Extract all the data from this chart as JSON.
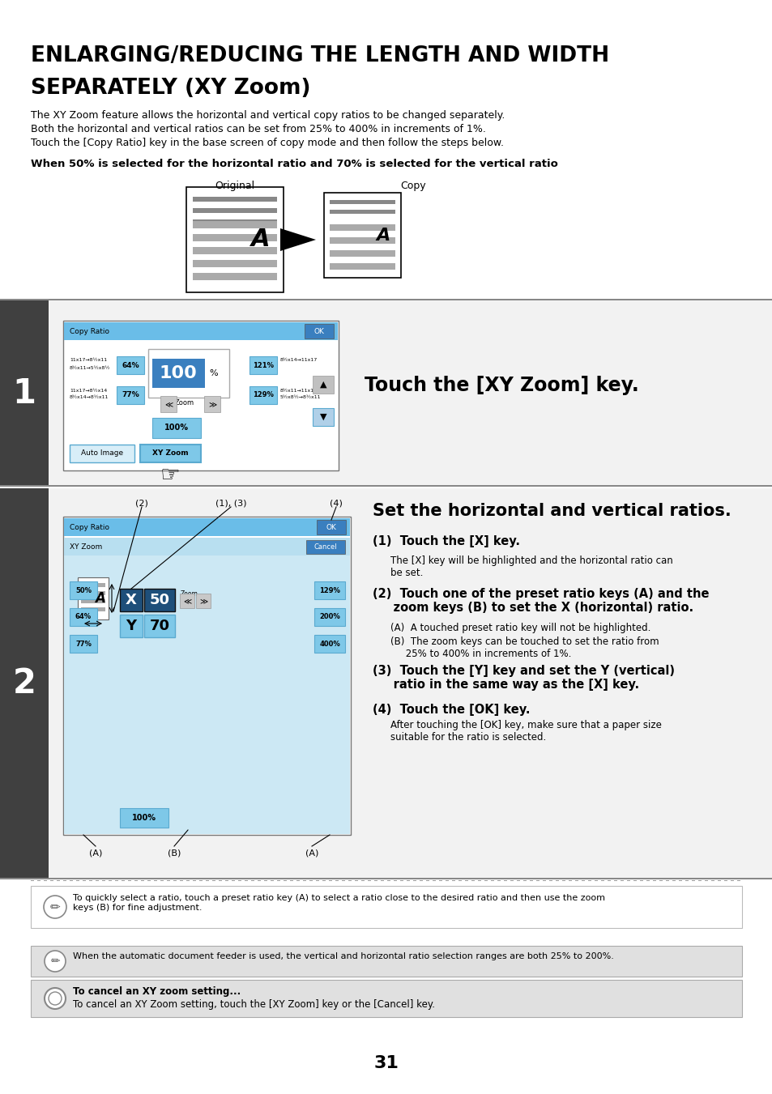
{
  "title_line1": "ENLARGING/REDUCING THE LENGTH AND WIDTH",
  "title_line2": "SEPARATELY (XY Zoom)",
  "intro_lines": [
    "The XY Zoom feature allows the horizontal and vertical copy ratios to be changed separately.",
    "Both the horizontal and vertical ratios can be set from 25% to 400% in increments of 1%.",
    "Touch the [Copy Ratio] key in the base screen of copy mode and then follow the steps below."
  ],
  "condition_text": "When 50% is selected for the horizontal ratio and 70% is selected for the vertical ratio",
  "original_label": "Original",
  "copy_label": "Copy",
  "step1_title": "Touch the [XY Zoom] key.",
  "step2_title": "Set the horizontal and vertical ratios.",
  "step2_sub1_title": "(1)  Touch the [X] key.",
  "step2_sub1_text": "The [X] key will be highlighted and the horizontal ratio can\nbe set.",
  "step2_sub2_title": "(2)  Touch one of the preset ratio keys (A) and the\n     zoom keys (B) to set the X (horizontal) ratio.",
  "step2_sub2_text_a": "(A)  A touched preset ratio key will not be highlighted.",
  "step2_sub2_text_b": "(B)  The zoom keys can be touched to set the ratio from\n     25% to 400% in increments of 1%.",
  "step2_sub3_title": "(3)  Touch the [Y] key and set the Y (vertical)\n     ratio in the same way as the [X] key.",
  "step2_sub4_title": "(4)  Touch the [OK] key.",
  "step2_sub4_text": "After touching the [OK] key, make sure that a paper size\nsuitable for the ratio is selected.",
  "tip_text": "To quickly select a ratio, touch a preset ratio key (A) to select a ratio close to the desired ratio and then use the zoom\nkeys (B) for fine adjustment.",
  "note1_text": "When the automatic document feeder is used, the vertical and horizontal ratio selection ranges are both 25% to 200%.",
  "note2_title": "To cancel an XY zoom setting...",
  "note2_text": "To cancel an XY Zoom setting, touch the [XY Zoom] key or the [Cancel] key.",
  "page_number": "31",
  "bg_color": "#ffffff",
  "dark_bg": "#404040",
  "blue_header": "#6abde8",
  "blue_btn": "#7ec8e8",
  "dark_blue_btn": "#3a7fbf",
  "light_blue_row": "#b8dff0",
  "content_blue": "#cce8f4",
  "note_bg": "#e0e0e0",
  "step_bg": "#f2f2f2"
}
